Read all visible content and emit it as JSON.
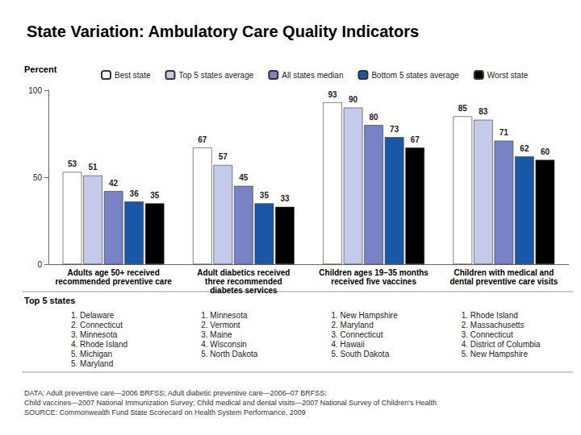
{
  "chart_data": {
    "type": "bar",
    "title": "State Variation: Ambulatory Care Quality Indicators",
    "y_label": "Percent",
    "categories": [
      "Adults age 50+ received\nrecommended preventive care",
      "Adult diabetics received\nthree recommended\ndiabetes services",
      "Children ages 19–35 months\nreceived five vaccines",
      "Children with medical and\ndental preventive care visits"
    ],
    "series": [
      {
        "name": "Best state",
        "color": "#ffffff",
        "values": [
          53,
          67,
          93,
          85
        ]
      },
      {
        "name": "Top 5 states average",
        "color": "#c5c9ea",
        "values": [
          51,
          57,
          90,
          83
        ]
      },
      {
        "name": "All states median",
        "color": "#7883c6",
        "values": [
          42,
          45,
          80,
          71
        ]
      },
      {
        "name": "Bottom 5 states average",
        "color": "#1b57a8",
        "values": [
          36,
          35,
          73,
          62
        ]
      },
      {
        "name": "Worst state",
        "color": "#000000",
        "values": [
          35,
          33,
          67,
          60
        ]
      }
    ],
    "ylim": [
      0,
      100
    ],
    "yticks": [
      0,
      50,
      100
    ],
    "grid": false,
    "legend": "top",
    "data_labels": true,
    "top_states": {
      "title": "Top 5 states",
      "lists": [
        [
          "1. Delaware",
          "2. Connecticut",
          "3. Minnesota",
          "4. Rhode Island",
          "5. Michigan",
          "5. Maryland"
        ],
        [
          "1. Minnesota",
          "2. Vermont",
          "3. Maine",
          "4. Wisconsin",
          "5. North Dakota"
        ],
        [
          "1. New Hampshire",
          "2. Maryland",
          "3. Connecticut",
          "4. Hawaii",
          "5. South Dakota"
        ],
        [
          "1. Rhode Island",
          "2. Massachusetts",
          "3. Connecticut",
          "4. District of Columbia",
          "5. New Hampshire"
        ]
      ]
    },
    "notes": [
      "DATA: Adult preventive care—2006 BRFSS; Adult diabetic preventive care—2006–07 BRFSS;",
      "Child vaccines—2007 National Immunization Survey; Child medical and dental visits—2007 National Survey of Children's Health",
      "SOURCE: Commonwealth Fund State Scorecard on Health System Performance, 2009"
    ]
  }
}
